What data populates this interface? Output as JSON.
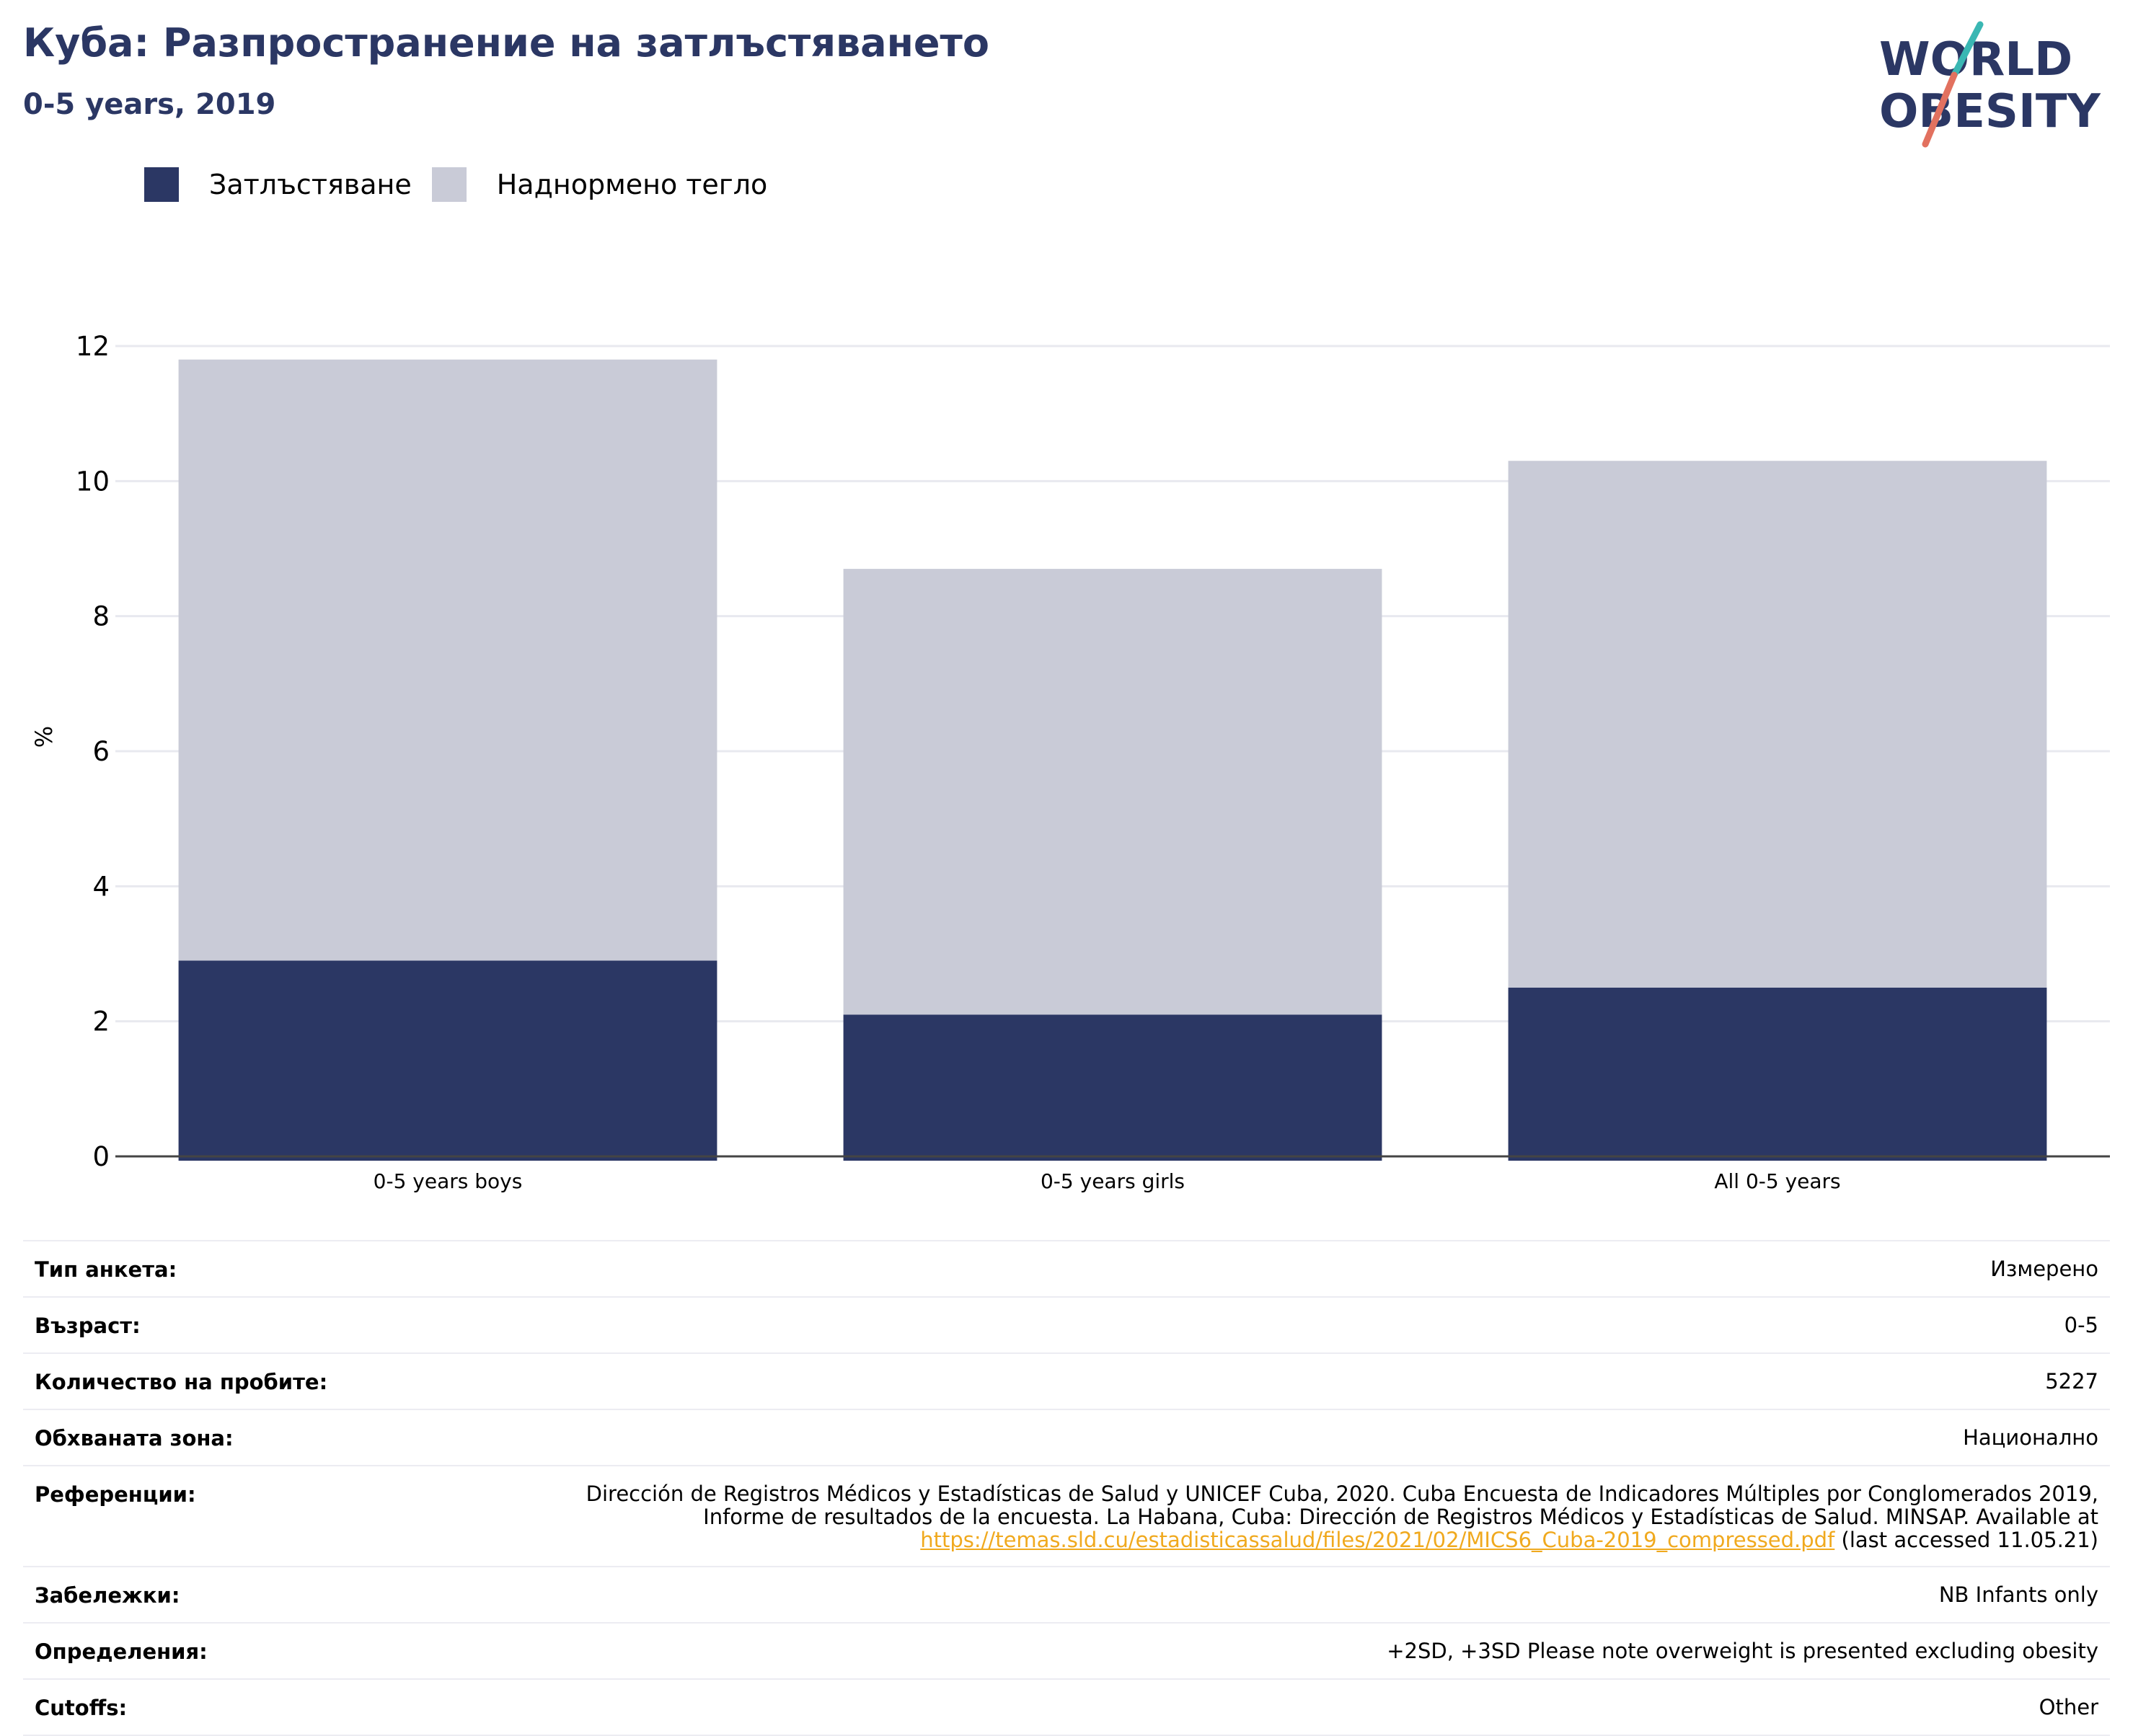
{
  "header": {
    "title": "Куба: Разпространение на затлъстяването",
    "subtitle": "0-5 years, 2019"
  },
  "logo": {
    "line1": "WORLD",
    "line2": "OBESITY",
    "colors": {
      "text": "#2b3764",
      "slash_top": "#3ab7b3",
      "slash_bottom": "#e2715f"
    }
  },
  "legend": {
    "items": [
      {
        "label": "Затлъстяване",
        "color": "#2b3764"
      },
      {
        "label": "Наднормено тегло",
        "color": "#c9cbd7"
      }
    ]
  },
  "chart_data": {
    "type": "bar",
    "stacked": true,
    "categories": [
      "0-5 years boys",
      "0-5 years girls",
      "All 0-5 years"
    ],
    "series": [
      {
        "name": "Затлъстяване",
        "values": [
          2.9,
          2.1,
          2.5
        ],
        "color": "#2b3764"
      },
      {
        "name": "Наднормено тегло",
        "values": [
          8.9,
          6.6,
          7.8
        ],
        "color": "#c9cbd7"
      }
    ],
    "ylabel": "%",
    "ylim": [
      0,
      12
    ],
    "yticks": [
      0,
      2,
      4,
      6,
      8,
      10,
      12
    ],
    "grid": true
  },
  "info": {
    "rows": [
      {
        "label": "Тип анкета:",
        "value": "Измерено"
      },
      {
        "label": "Възраст:",
        "value": "0-5"
      },
      {
        "label": "Количество на пробите:",
        "value": "5227"
      },
      {
        "label": "Обхваната зона:",
        "value": "Национално"
      },
      {
        "label": "Референции:",
        "value": "Dirección de Registros Médicos y Estadísticas de Salud y UNICEF Cuba, 2020. Cuba Encuesta de Indicadores Múltiples por Conglomerados 2019, Informe de resultados de la encuesta. La Habana, Cuba: Dirección de Registros Médicos y Estadísticas de Salud. MINSAP. Available at",
        "link": "https://temas.sld.cu/estadisticassalud/files/2021/02/MICS6_Cuba-2019_compressed.pdf",
        "suffix": " (last accessed 11.05.21)"
      },
      {
        "label": "Забележки:",
        "value": "NB Infants only"
      },
      {
        "label": "Определения:",
        "value": "+2SD, +3SD Please note overweight is presented excluding obesity"
      },
      {
        "label": "Cutoffs:",
        "value": "Other"
      }
    ]
  }
}
